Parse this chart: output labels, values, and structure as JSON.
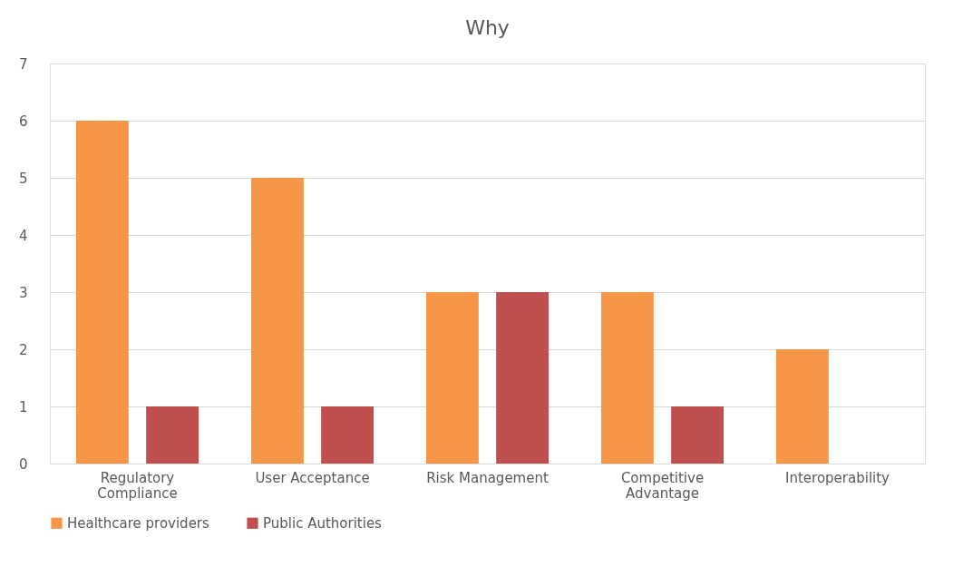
{
  "chart_data": {
    "type": "bar",
    "title": "Why",
    "categories": [
      "Regulatory Compliance",
      "User Acceptance",
      "Risk Management",
      "Competitive Advantage",
      "Interoperability"
    ],
    "series": [
      {
        "name": "Healthcare providers",
        "color": "#f79646",
        "values": [
          6,
          5,
          3,
          3,
          2
        ]
      },
      {
        "name": "Public Authorities",
        "color": "#c0504d",
        "values": [
          1,
          1,
          3,
          1,
          0
        ]
      }
    ],
    "ylim": [
      0,
      7
    ],
    "yticks": [
      0,
      1,
      2,
      3,
      4,
      5,
      6,
      7
    ],
    "grid": "y",
    "legend": "bottom"
  }
}
